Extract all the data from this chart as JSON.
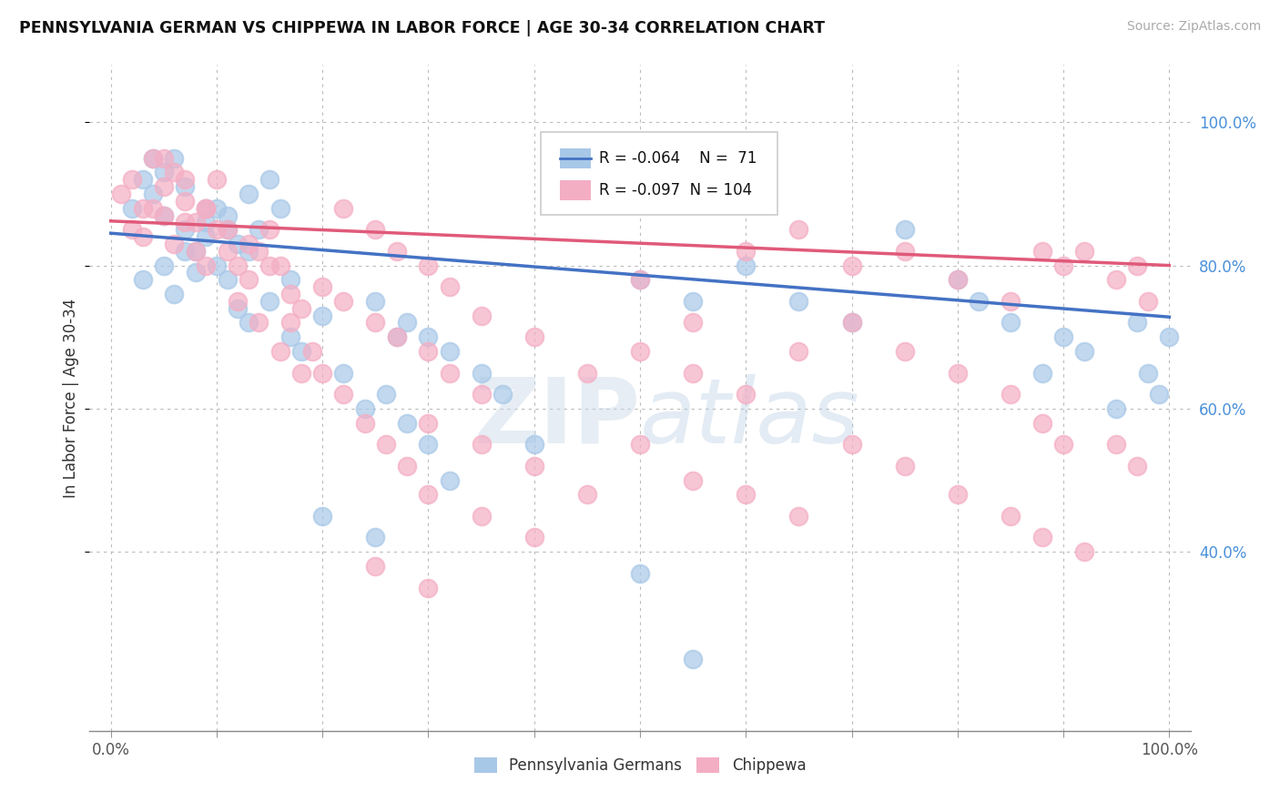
{
  "title": "PENNSYLVANIA GERMAN VS CHIPPEWA IN LABOR FORCE | AGE 30-34 CORRELATION CHART",
  "source": "Source: ZipAtlas.com",
  "ylabel": "In Labor Force | Age 30-34",
  "xlim": [
    -0.02,
    1.02
  ],
  "ylim": [
    0.15,
    1.08
  ],
  "xticks": [
    0.0,
    0.1,
    0.2,
    0.3,
    0.4,
    0.5,
    0.6,
    0.7,
    0.8,
    0.9,
    1.0
  ],
  "xtick_labels_show": [
    "0.0%",
    "",
    "",
    "",
    "",
    "",
    "",
    "",
    "",
    "",
    "100.0%"
  ],
  "ytick_vals": [
    0.4,
    0.6,
    0.8,
    1.0
  ],
  "ytick_labels": [
    "40.0%",
    "60.0%",
    "80.0%",
    "100.0%"
  ],
  "legend_labels": [
    "Pennsylvania Germans",
    "Chippewa"
  ],
  "blue_r": -0.064,
  "blue_n": 71,
  "pink_r": -0.097,
  "pink_n": 104,
  "blue_color": "#a8c8e8",
  "pink_color": "#f4aec4",
  "blue_line_color": "#4472c4",
  "pink_line_color": "#e05a7a",
  "blue_line_start_y": 0.845,
  "blue_line_end_y": 0.728,
  "pink_line_start_y": 0.862,
  "pink_line_end_y": 0.8,
  "watermark_text": "ZIPatlas",
  "blue_x": [
    0.02,
    0.03,
    0.04,
    0.05,
    0.06,
    0.07,
    0.08,
    0.09,
    0.1,
    0.11,
    0.12,
    0.13,
    0.14,
    0.15,
    0.16,
    0.03,
    0.05,
    0.06,
    0.07,
    0.08,
    0.09,
    0.1,
    0.11,
    0.12,
    0.13,
    0.15,
    0.17,
    0.18,
    0.2,
    0.22,
    0.24,
    0.26,
    0.28,
    0.3,
    0.32,
    0.35,
    0.37,
    0.4,
    0.28,
    0.3,
    0.32,
    0.25,
    0.27,
    0.5,
    0.55,
    0.6,
    0.65,
    0.7,
    0.75,
    0.8,
    0.82,
    0.85,
    0.88,
    0.9,
    0.92,
    0.95,
    0.97,
    0.98,
    0.99,
    1.0,
    0.04,
    0.05,
    0.07,
    0.09,
    0.11,
    0.13,
    0.17,
    0.2,
    0.25,
    0.5,
    0.55
  ],
  "blue_y": [
    0.88,
    0.92,
    0.9,
    0.87,
    0.95,
    0.85,
    0.82,
    0.86,
    0.88,
    0.87,
    0.83,
    0.9,
    0.85,
    0.92,
    0.88,
    0.78,
    0.8,
    0.76,
    0.82,
    0.79,
    0.84,
    0.8,
    0.78,
    0.74,
    0.72,
    0.75,
    0.7,
    0.68,
    0.73,
    0.65,
    0.6,
    0.62,
    0.58,
    0.55,
    0.5,
    0.65,
    0.62,
    0.55,
    0.72,
    0.7,
    0.68,
    0.75,
    0.7,
    0.78,
    0.75,
    0.8,
    0.75,
    0.72,
    0.85,
    0.78,
    0.75,
    0.72,
    0.65,
    0.7,
    0.68,
    0.6,
    0.72,
    0.65,
    0.62,
    0.7,
    0.95,
    0.93,
    0.91,
    0.88,
    0.85,
    0.82,
    0.78,
    0.45,
    0.42,
    0.37,
    0.25
  ],
  "pink_x": [
    0.01,
    0.02,
    0.03,
    0.04,
    0.05,
    0.06,
    0.07,
    0.08,
    0.09,
    0.1,
    0.02,
    0.03,
    0.04,
    0.05,
    0.06,
    0.07,
    0.08,
    0.09,
    0.1,
    0.11,
    0.12,
    0.13,
    0.14,
    0.15,
    0.16,
    0.17,
    0.18,
    0.05,
    0.07,
    0.09,
    0.11,
    0.13,
    0.15,
    0.2,
    0.22,
    0.25,
    0.27,
    0.3,
    0.32,
    0.35,
    0.22,
    0.25,
    0.27,
    0.3,
    0.32,
    0.35,
    0.4,
    0.45,
    0.5,
    0.55,
    0.6,
    0.65,
    0.7,
    0.75,
    0.8,
    0.85,
    0.88,
    0.9,
    0.92,
    0.95,
    0.97,
    0.98,
    0.5,
    0.55,
    0.6,
    0.65,
    0.7,
    0.75,
    0.8,
    0.85,
    0.88,
    0.9,
    0.95,
    0.97,
    0.3,
    0.35,
    0.4,
    0.45,
    0.17,
    0.19,
    0.2,
    0.22,
    0.24,
    0.26,
    0.28,
    0.3,
    0.35,
    0.4,
    0.12,
    0.14,
    0.16,
    0.18,
    0.5,
    0.55,
    0.6,
    0.65,
    0.7,
    0.75,
    0.8,
    0.85,
    0.88,
    0.92,
    0.25,
    0.3
  ],
  "pink_y": [
    0.9,
    0.92,
    0.88,
    0.95,
    0.91,
    0.93,
    0.89,
    0.86,
    0.88,
    0.92,
    0.85,
    0.84,
    0.88,
    0.87,
    0.83,
    0.86,
    0.82,
    0.8,
    0.85,
    0.82,
    0.8,
    0.78,
    0.82,
    0.85,
    0.8,
    0.76,
    0.74,
    0.95,
    0.92,
    0.88,
    0.85,
    0.83,
    0.8,
    0.77,
    0.75,
    0.72,
    0.7,
    0.68,
    0.65,
    0.62,
    0.88,
    0.85,
    0.82,
    0.8,
    0.77,
    0.73,
    0.7,
    0.65,
    0.78,
    0.72,
    0.82,
    0.85,
    0.8,
    0.82,
    0.78,
    0.75,
    0.82,
    0.8,
    0.82,
    0.78,
    0.8,
    0.75,
    0.68,
    0.65,
    0.62,
    0.68,
    0.72,
    0.68,
    0.65,
    0.62,
    0.58,
    0.55,
    0.55,
    0.52,
    0.58,
    0.55,
    0.52,
    0.48,
    0.72,
    0.68,
    0.65,
    0.62,
    0.58,
    0.55,
    0.52,
    0.48,
    0.45,
    0.42,
    0.75,
    0.72,
    0.68,
    0.65,
    0.55,
    0.5,
    0.48,
    0.45,
    0.55,
    0.52,
    0.48,
    0.45,
    0.42,
    0.4,
    0.38,
    0.35
  ]
}
